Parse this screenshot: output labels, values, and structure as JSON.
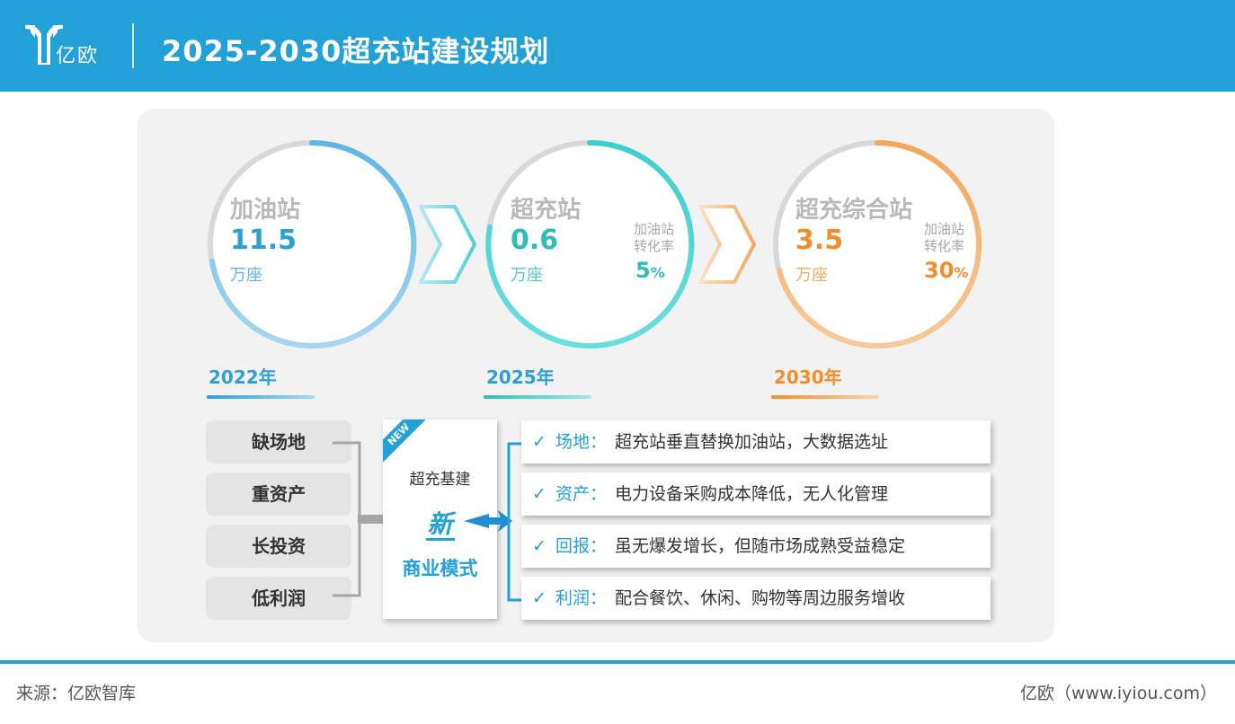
{
  "header": {
    "logo_text": "亿欧",
    "title": "2025-2030超充站建设规划"
  },
  "stations": [
    {
      "name": "加油站",
      "value": "11.5",
      "unit": "万座",
      "year": "2022年",
      "color": "#2e9ed6"
    },
    {
      "name": "超充站",
      "value": "0.6",
      "unit": "万座",
      "year": "2025年",
      "color": "#30c3c3",
      "conversion_label": "加油站转化率",
      "conversion_value": "5",
      "conversion_unit": "%"
    },
    {
      "name": "超充综合站",
      "value": "3.5",
      "unit": "万座",
      "year": "2030年",
      "color": "#f08d2c",
      "conversion_label": "加油站转化率",
      "conversion_value": "30",
      "conversion_unit": "%"
    }
  ],
  "issues": [
    "缺场地",
    "重资产",
    "长投资",
    "低利润"
  ],
  "model": {
    "tag": "NEW",
    "top": "超充基建",
    "new": "新",
    "bottom": "商业模式"
  },
  "features": [
    {
      "name": "场地：",
      "desc": "超充站垂直替换加油站，大数据选址"
    },
    {
      "name": "资产：",
      "desc": "电力设备采购成本降低，无人化管理"
    },
    {
      "name": "回报：",
      "desc": "虽无爆发增长，但随市场成熟受益稳定"
    },
    {
      "name": "利润：",
      "desc": "配合餐饮、休闲、购物等周边服务增收"
    }
  ],
  "footer": {
    "source": "来源：亿欧智库",
    "credit": "亿欧（www.iyiou.com）"
  }
}
